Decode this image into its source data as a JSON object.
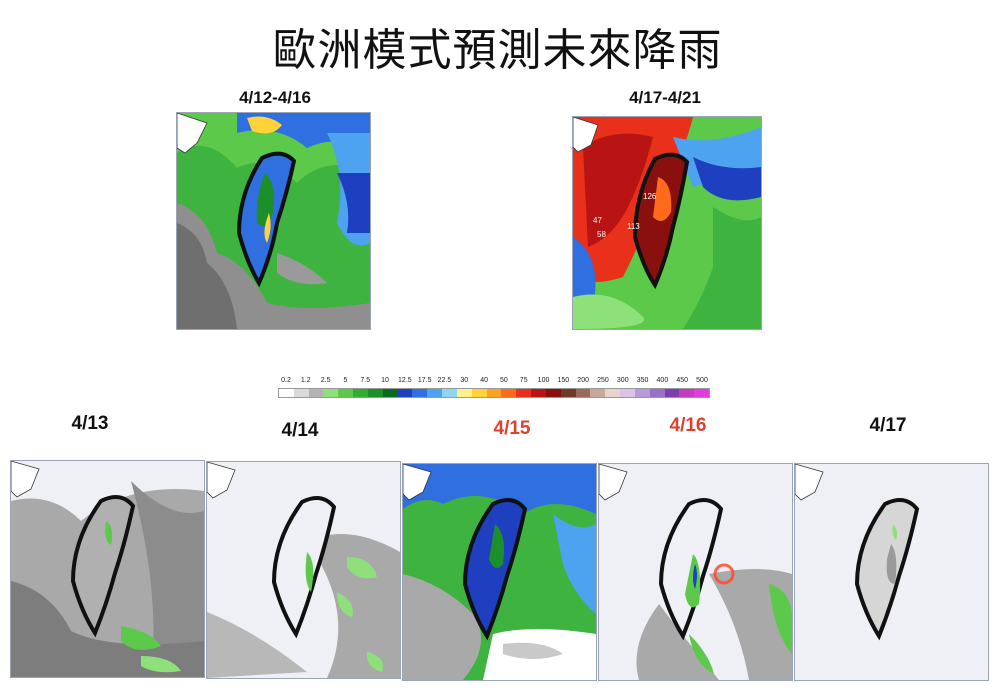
{
  "title": "歐洲模式預測未來降雨",
  "colors": {
    "scale": [
      "#ffffff",
      "#d9d9d9",
      "#b3b3b3",
      "#8ee17a",
      "#5cc94a",
      "#2fae2f",
      "#1c8f2a",
      "#0a6b1c",
      "#1e3fbf",
      "#2f6fe0",
      "#4da3f0",
      "#8fd3f5",
      "#fff08a",
      "#ffd23a",
      "#ffa21f",
      "#ff6b1a",
      "#e8301a",
      "#b81414",
      "#8a1010",
      "#6e3a2a",
      "#9a6b5a",
      "#c7a89a",
      "#e6d3cc",
      "#d8c4e8",
      "#b79ad9",
      "#9a6fc9",
      "#7b3fb3",
      "#c23bc2",
      "#e23be0"
    ]
  },
  "summary_panels": [
    {
      "label": "4/12-4/16",
      "theme": "wet",
      "values": []
    },
    {
      "label": "4/17-4/21",
      "theme": "heavy",
      "values": [
        "126",
        "113",
        "47",
        "58"
      ]
    }
  ],
  "legend": {
    "ticks": [
      "0.2",
      "1.2",
      "2.5",
      "5",
      "7.5",
      "10",
      "12.5",
      "17.5",
      "22.5",
      "30",
      "40",
      "50",
      "75",
      "100",
      "150",
      "200",
      "250",
      "300",
      "350",
      "400",
      "450",
      "500"
    ]
  },
  "daily_panels": [
    {
      "label": "4/13",
      "highlight": false,
      "theme": "dry-gray"
    },
    {
      "label": "4/14",
      "highlight": false,
      "theme": "light-green"
    },
    {
      "label": "4/15",
      "highlight": true,
      "theme": "wet"
    },
    {
      "label": "4/16",
      "highlight": true,
      "theme": "east-rain"
    },
    {
      "label": "4/17",
      "highlight": false,
      "theme": "clear"
    }
  ]
}
